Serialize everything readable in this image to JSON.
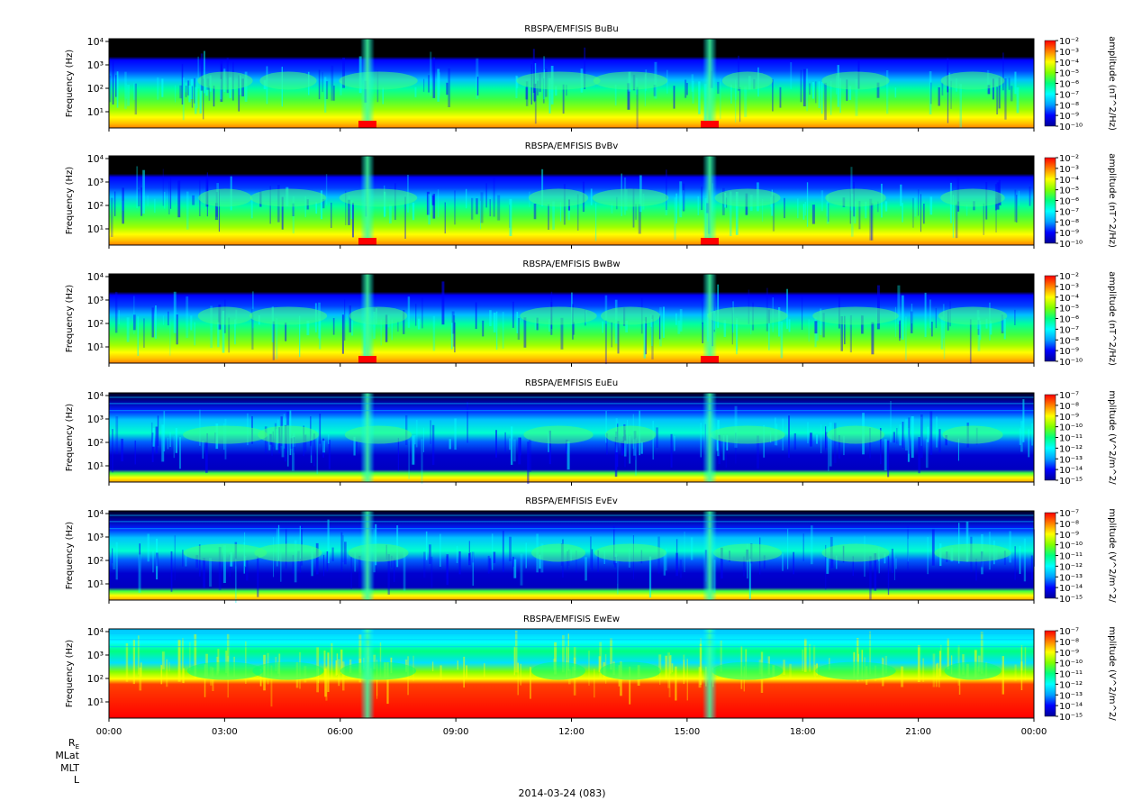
{
  "chart_data": {
    "type": "heatmap",
    "date_label": "2014-03-24 (083)",
    "x_ticks": [
      "00:00",
      "03:00",
      "06:00",
      "09:00",
      "12:00",
      "15:00",
      "18:00",
      "21:00",
      "00:00"
    ],
    "y_label": "Frequency (Hz)",
    "y_ticks": [
      "10^1",
      "10^2",
      "10^3",
      "10^4"
    ],
    "y_scale": "log",
    "ephemeris_labels": [
      "R_E",
      "MLat",
      "MLT",
      "L"
    ],
    "colormap": [
      "#000099",
      "#0000ff",
      "#00a0ff",
      "#00ffff",
      "#00ff80",
      "#80ff00",
      "#ffff00",
      "#ff8000",
      "#ff0000"
    ],
    "panels": [
      {
        "title": "RBSPA/EMFISIS  BuBu",
        "kind": "B",
        "colorbar_label": "amplitude (nT^2/Hz)",
        "colorbar_ticks": [
          "-2",
          "-3",
          "-4",
          "-5",
          "-6",
          "-7",
          "-8",
          "-9",
          "-10"
        ]
      },
      {
        "title": "RBSPA/EMFISIS  BvBv",
        "kind": "B",
        "colorbar_label": "amplitude (nT^2/Hz)",
        "colorbar_ticks": [
          "-2",
          "-3",
          "-4",
          "-5",
          "-6",
          "-7",
          "-8",
          "-9",
          "-10"
        ]
      },
      {
        "title": "RBSPA/EMFISIS  BwBw",
        "kind": "B",
        "colorbar_label": "amplitude (nT^2/Hz)",
        "colorbar_ticks": [
          "-2",
          "-3",
          "-4",
          "-5",
          "-6",
          "-7",
          "-8",
          "-9",
          "-10"
        ]
      },
      {
        "title": "RBSPA/EMFISIS  EuEu",
        "kind": "E",
        "colorbar_label": "mplitude (V^2/m^2/",
        "colorbar_ticks": [
          "-7",
          "-8",
          "-9",
          "-10",
          "-11",
          "-12",
          "-13",
          "-14",
          "-15"
        ]
      },
      {
        "title": "RBSPA/EMFISIS  EvEv",
        "kind": "E",
        "colorbar_label": "mplitude (V^2/m^2/",
        "colorbar_ticks": [
          "-7",
          "-8",
          "-9",
          "-10",
          "-11",
          "-12",
          "-13",
          "-14",
          "-15"
        ]
      },
      {
        "title": "RBSPA/EMFISIS  EwEw",
        "kind": "Ew",
        "colorbar_label": "mplitude (V^2/m^2/",
        "colorbar_ticks": [
          "-7",
          "-8",
          "-9",
          "-10",
          "-11",
          "-12",
          "-13",
          "-14",
          "-15"
        ]
      }
    ]
  }
}
